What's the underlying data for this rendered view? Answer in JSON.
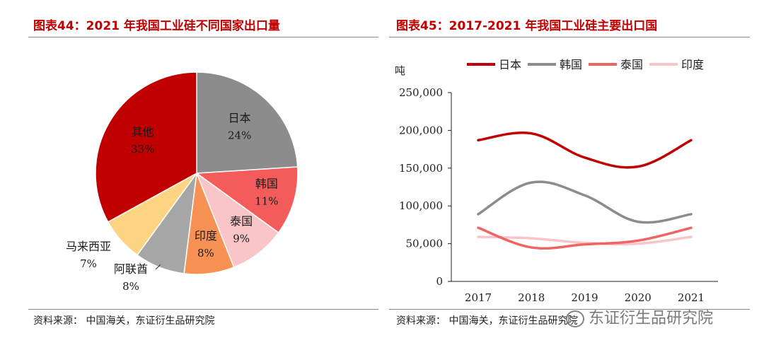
{
  "left": {
    "title": "图表44：2021 年我国工业硅不同国家出口量",
    "source": "资料来源： 中国海关，东证衍生品研究院"
  },
  "right": {
    "title": "图表45：2017-2021 年我国工业硅主要出口国",
    "source": "资料来源： 中国海关，东证衍生品研究院"
  },
  "watermark": "东证衍生品研究院",
  "chart_data": [
    {
      "type": "pie",
      "title": "图表44：2021 年我国工业硅不同国家出口量",
      "slices": [
        {
          "name": "日本",
          "value": 24,
          "label": "24%",
          "color": "#8c8c8c"
        },
        {
          "name": "韩国",
          "value": 11,
          "label": "11%",
          "color": "#f45b5b"
        },
        {
          "name": "泰国",
          "value": 9,
          "label": "9%",
          "color": "#f9c5c8"
        },
        {
          "name": "印度",
          "value": 8,
          "label": "8%",
          "color": "#f79254"
        },
        {
          "name": "阿联酋",
          "value": 8,
          "label": "8%",
          "color": "#a6a6a6"
        },
        {
          "name": "马来西亚",
          "value": 7,
          "label": "7%",
          "color": "#fdd582"
        },
        {
          "name": "其他",
          "value": 33,
          "label": "33%",
          "color": "#c00000"
        }
      ]
    },
    {
      "type": "line",
      "title": "图表45：2017-2021 年我国工业硅主要出口国",
      "yunit": "吨",
      "x": [
        "2017",
        "2018",
        "2019",
        "2020",
        "2021"
      ],
      "ylim": [
        0,
        250000
      ],
      "yticks": [
        "0",
        "50,000",
        "100,000",
        "150,000",
        "200,000",
        "250,000"
      ],
      "ytick_values": [
        0,
        50000,
        100000,
        150000,
        200000,
        250000
      ],
      "legend_position": "top",
      "grid": false,
      "series": [
        {
          "name": "日本",
          "color": "#c00000",
          "values": [
            187000,
            196000,
            164000,
            152000,
            187000
          ]
        },
        {
          "name": "韩国",
          "color": "#8c8c8c",
          "values": [
            89000,
            131000,
            114000,
            79000,
            89000
          ]
        },
        {
          "name": "泰国",
          "color": "#f06464",
          "values": [
            71000,
            45000,
            49000,
            54000,
            71000
          ]
        },
        {
          "name": "印度",
          "color": "#f9c5c8",
          "values": [
            59000,
            57000,
            51000,
            50000,
            59000
          ]
        }
      ]
    }
  ]
}
